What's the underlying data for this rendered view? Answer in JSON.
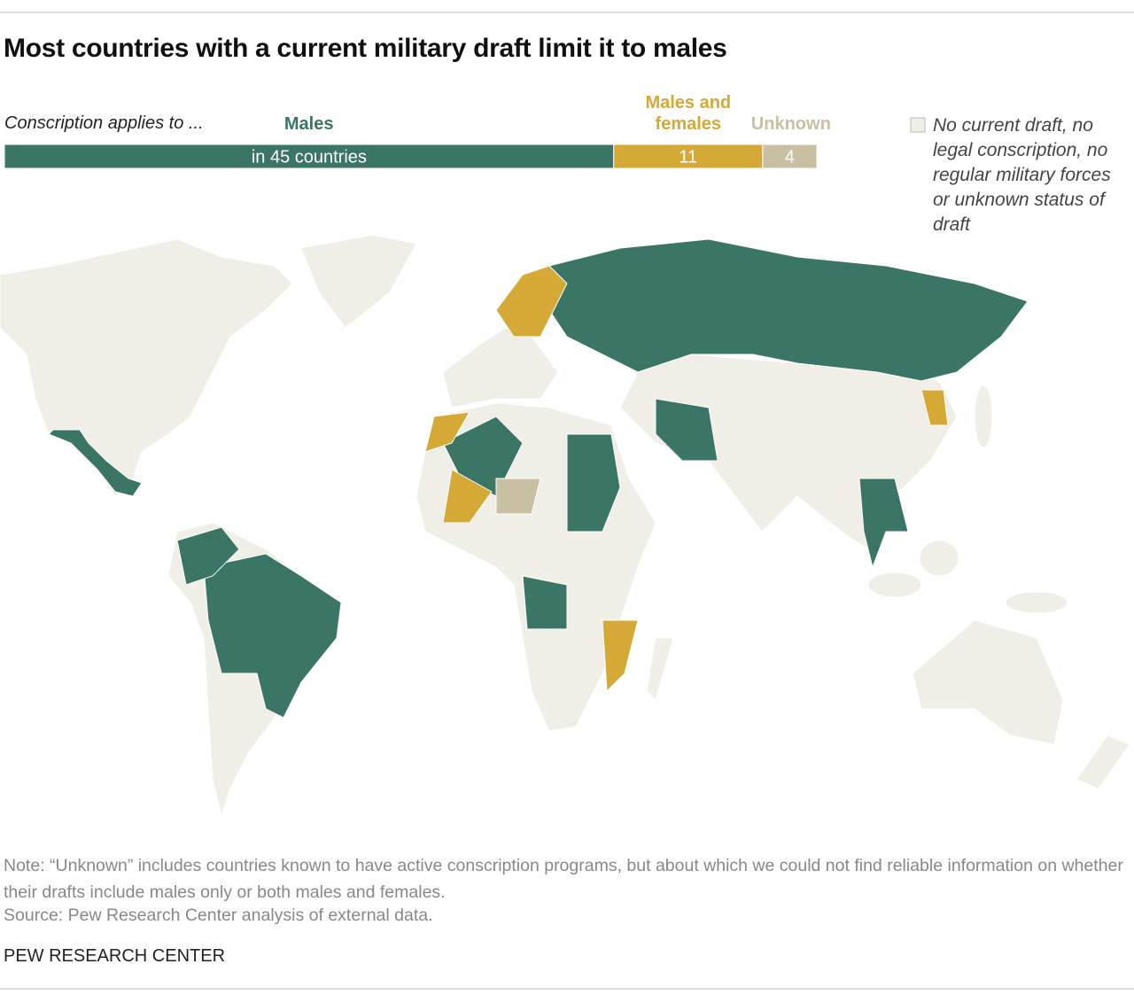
{
  "chart_data": {
    "type": "bar",
    "stacked": true,
    "orientation": "horizontal",
    "title": "Most countries with a current military draft limit it to males",
    "bar_label": "Conscription applies to ...",
    "series": [
      {
        "name": "Males",
        "color": "#3a7565",
        "values": [
          45
        ],
        "value_labels": [
          "in 45 countries"
        ]
      },
      {
        "name": "Males and females",
        "color": "#d4a935",
        "values": [
          11
        ]
      },
      {
        "name": "Unknown",
        "color": "#c9bfa2",
        "values": [
          4
        ]
      }
    ],
    "other_legend": {
      "name": "No current draft, no legal conscription, no regular military forces or unknown status of draft",
      "color": "#efeee7"
    },
    "note": "Note: “Unknown” includes countries known to have active conscription programs, but about which we could not find reliable information on whether their drafts include males only or both males and females.",
    "source": "Source: Pew Research Center analysis of external data.",
    "footer": "PEW RESEARCH CENTER"
  }
}
